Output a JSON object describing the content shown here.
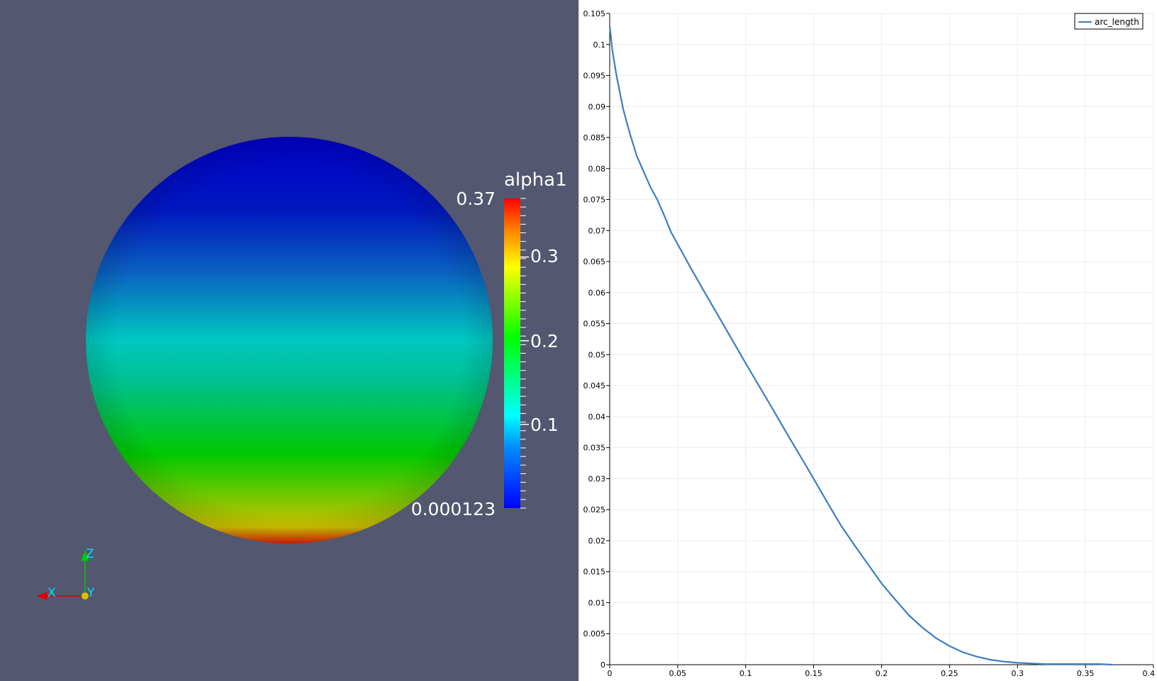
{
  "render_view": {
    "scalar_bar": {
      "title": "alpha1",
      "max_label": "0.37",
      "min_label": "0.000123",
      "tick_labels": [
        "0.3",
        "0.2",
        "0.1"
      ],
      "range": [
        0.000123,
        0.37
      ],
      "tick_values": [
        0.3,
        0.2,
        0.1
      ],
      "colormap": "jet-like rainbow (blue - cyan - green - yellow - red)"
    },
    "sphere": {
      "colors_top_to_bottom": [
        "#0000c8",
        "#0a4ec4",
        "#00c8c0",
        "#00c800",
        "#d0d000",
        "#e02000"
      ]
    },
    "orientation_axes": {
      "x_label": "X",
      "y_label": "Y",
      "z_label": "Z",
      "x_color": "#e00000",
      "y_color": "#d4c400",
      "z_color": "#00c800",
      "label_color": "#00e0ff"
    },
    "background_color": "#535770"
  },
  "chart_data": {
    "type": "line",
    "title": "",
    "xlabel": "",
    "ylabel": "",
    "xlim": [
      0,
      0.4
    ],
    "ylim": [
      0,
      0.105
    ],
    "x_ticks": [
      "0",
      "0.05",
      "0.1",
      "0.15",
      "0.2",
      "0.25",
      "0.3",
      "0.35",
      "0.4"
    ],
    "y_ticks": [
      "0",
      "0.005",
      "0.01",
      "0.015",
      "0.02",
      "0.025",
      "0.03",
      "0.035",
      "0.04",
      "0.045",
      "0.05",
      "0.055",
      "0.06",
      "0.065",
      "0.07",
      "0.075",
      "0.08",
      "0.085",
      "0.09",
      "0.095",
      "0.1",
      "0.105"
    ],
    "grid": true,
    "legend_position": "top-right",
    "series": [
      {
        "name": "arc_length",
        "color": "#3a7ebf",
        "x": [
          0,
          0.002,
          0.005,
          0.01,
          0.015,
          0.02,
          0.025,
          0.03,
          0.035,
          0.04,
          0.045,
          0.05,
          0.06,
          0.07,
          0.08,
          0.09,
          0.1,
          0.11,
          0.12,
          0.13,
          0.14,
          0.15,
          0.16,
          0.17,
          0.18,
          0.19,
          0.2,
          0.21,
          0.22,
          0.23,
          0.24,
          0.25,
          0.26,
          0.27,
          0.28,
          0.29,
          0.3,
          0.31,
          0.32,
          0.33,
          0.34,
          0.35,
          0.36,
          0.37
        ],
        "y": [
          0.103,
          0.099,
          0.095,
          0.0895,
          0.0855,
          0.082,
          0.0795,
          0.077,
          0.075,
          0.0725,
          0.0698,
          0.0678,
          0.0638,
          0.06,
          0.0562,
          0.0524,
          0.0486,
          0.0449,
          0.0412,
          0.0374,
          0.0337,
          0.03,
          0.0262,
          0.0225,
          0.0193,
          0.0162,
          0.0131,
          0.0105,
          0.008,
          0.006,
          0.0043,
          0.003,
          0.002,
          0.0013,
          0.0008,
          0.0005,
          0.0003,
          0.0002,
          0.0001,
          0.0001,
          0.0001,
          0.0001,
          0.0001,
          0.0
        ]
      }
    ]
  }
}
